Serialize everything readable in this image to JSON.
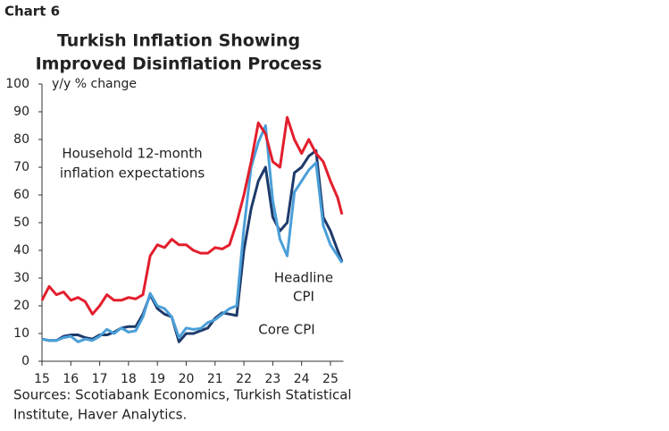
{
  "chart_data": {
    "type": "line",
    "label": "Chart 6",
    "title": [
      "Turkish Inflation Showing",
      "Improved Disinflation Process"
    ],
    "ylabel": "y/y % change",
    "source": [
      "Sources: Scotiabank Economics, Turkish Statistical",
      "Institute, Haver Analytics."
    ],
    "x": [
      15,
      15.25,
      15.5,
      15.75,
      16,
      16.25,
      16.5,
      16.75,
      17,
      17.25,
      17.5,
      17.75,
      18,
      18.25,
      18.5,
      18.75,
      19,
      19.25,
      19.5,
      19.75,
      20,
      20.25,
      20.5,
      20.75,
      21,
      21.25,
      21.5,
      21.75,
      22,
      22.25,
      22.5,
      22.75,
      23,
      23.25,
      23.5,
      23.75,
      24,
      24.25,
      24.5,
      24.75,
      25,
      25.25,
      25.4
    ],
    "series": [
      {
        "name": [
          "Household 12-month",
          "inflation expectations"
        ],
        "color": "#e31e2d",
        "values": [
          22,
          27,
          24,
          25,
          22,
          23,
          21.5,
          17,
          20,
          24,
          22,
          22,
          23,
          22.5,
          24,
          38,
          42,
          41,
          44,
          42,
          42,
          40,
          39,
          39,
          41,
          40.5,
          42,
          50,
          60,
          72,
          86,
          82,
          72,
          70,
          88,
          80,
          75,
          80,
          75,
          72,
          65,
          59,
          53
        ]
      },
      {
        "name": [
          "Headline",
          "CPI"
        ],
        "color": "#4b9fd8",
        "values": [
          8,
          7.5,
          7.5,
          8.5,
          9,
          7,
          8,
          7.5,
          9,
          11.5,
          10,
          12,
          10.5,
          11,
          16,
          24.5,
          20,
          19,
          16,
          8.5,
          12,
          11.5,
          11.8,
          14,
          15,
          17,
          19,
          20,
          48,
          70,
          79,
          85,
          58,
          44,
          38,
          61,
          65,
          69,
          71.6,
          49,
          42,
          38,
          35.5
        ]
      },
      {
        "name": [
          "Core CPI"
        ],
        "color": "#1e3a6b",
        "values": [
          8,
          7.5,
          7.5,
          9,
          9.5,
          9.5,
          8.5,
          8,
          9.5,
          9.5,
          10.5,
          12,
          12.5,
          12.5,
          17,
          24,
          19,
          17,
          16,
          7,
          10,
          10,
          11,
          12,
          15.5,
          17.5,
          17,
          16.5,
          40,
          55,
          65,
          70,
          52,
          47,
          50,
          68,
          70,
          74,
          76,
          52,
          47,
          40,
          36
        ]
      }
    ],
    "xlim": [
      15,
      25.45
    ],
    "xticks": [
      15,
      16,
      17,
      18,
      19,
      20,
      21,
      22,
      23,
      24,
      25
    ],
    "ylim": [
      0,
      100
    ],
    "yticks": [
      0,
      10,
      20,
      30,
      40,
      50,
      60,
      70,
      80,
      90,
      100
    ],
    "grid": false
  }
}
